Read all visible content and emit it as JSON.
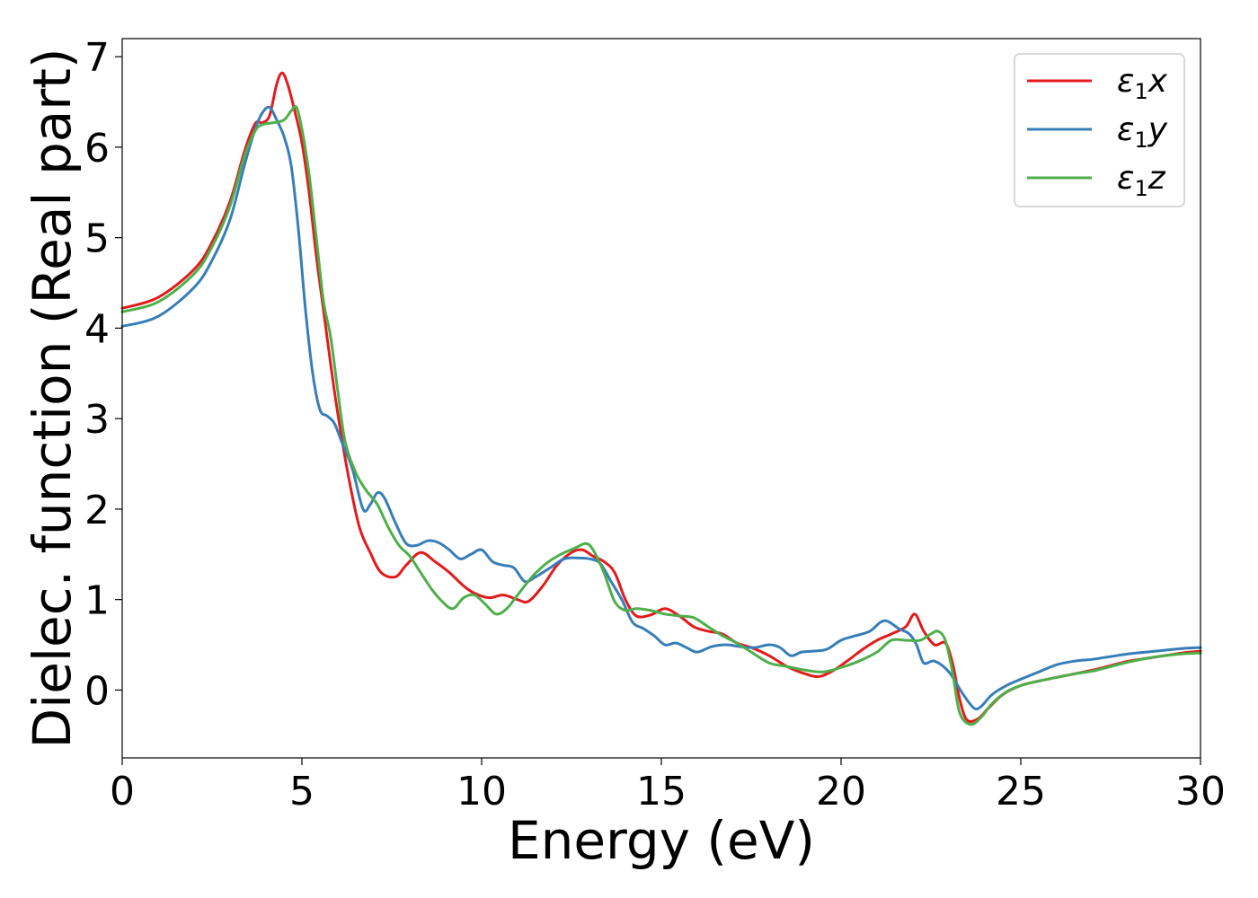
{
  "chart_data": {
    "type": "line",
    "title": "",
    "xlabel": "Energy (eV)",
    "ylabel": "Dielec. function (Real part)",
    "xlim": [
      0,
      30
    ],
    "ylim": [
      -0.75,
      7.2
    ],
    "xticks": [
      0,
      5,
      10,
      15,
      20,
      25,
      30
    ],
    "xtick_labels": [
      "0",
      "5",
      "10",
      "15",
      "20",
      "25",
      "30"
    ],
    "yticks": [
      0,
      1,
      2,
      3,
      4,
      5,
      6,
      7
    ],
    "ytick_labels": [
      "0",
      "1",
      "2",
      "3",
      "4",
      "5",
      "6",
      "7"
    ],
    "grid": false,
    "legend_position": "top-right",
    "series": [
      {
        "name": "ε1x",
        "label_main": "ε",
        "label_sub": "1",
        "label_tail": "x",
        "color": "#e41a1c",
        "x": [
          0,
          1,
          2,
          2.5,
          3,
          3.4,
          3.7,
          3.9,
          4.1,
          4.3,
          4.45,
          4.6,
          4.8,
          5.0,
          5.2,
          5.4,
          5.6,
          5.8,
          6.0,
          6.3,
          6.6,
          6.9,
          7.2,
          7.6,
          7.9,
          8.3,
          8.7,
          9.1,
          9.5,
          9.8,
          10.2,
          10.6,
          11.0,
          11.3,
          11.7,
          12.1,
          12.5,
          12.8,
          13.1,
          13.4,
          13.7,
          14.0,
          14.3,
          14.7,
          15.1,
          15.5,
          15.9,
          16.3,
          16.7,
          17.1,
          17.5,
          18.0,
          18.5,
          19.0,
          19.4,
          19.8,
          20.2,
          20.6,
          21.0,
          21.4,
          21.8,
          22.05,
          22.3,
          22.6,
          22.9,
          23.1,
          23.3,
          23.5,
          23.8,
          24.1,
          24.5,
          25.0,
          25.5,
          26.0,
          26.5,
          27.0,
          27.5,
          28.0,
          28.5,
          29.0,
          29.5,
          30.0
        ],
        "y": [
          4.22,
          4.34,
          4.65,
          4.95,
          5.4,
          5.95,
          6.26,
          6.27,
          6.35,
          6.7,
          6.82,
          6.7,
          6.4,
          6.05,
          5.5,
          4.8,
          4.2,
          3.6,
          3.05,
          2.35,
          1.8,
          1.52,
          1.3,
          1.25,
          1.38,
          1.52,
          1.42,
          1.3,
          1.15,
          1.07,
          1.02,
          1.05,
          1.0,
          0.98,
          1.15,
          1.38,
          1.52,
          1.55,
          1.48,
          1.42,
          1.3,
          1.0,
          0.82,
          0.83,
          0.9,
          0.82,
          0.7,
          0.65,
          0.62,
          0.52,
          0.47,
          0.38,
          0.26,
          0.18,
          0.15,
          0.22,
          0.33,
          0.45,
          0.55,
          0.62,
          0.7,
          0.84,
          0.65,
          0.5,
          0.52,
          0.3,
          -0.1,
          -0.33,
          -0.32,
          -0.2,
          -0.05,
          0.05,
          0.1,
          0.14,
          0.18,
          0.22,
          0.27,
          0.32,
          0.35,
          0.38,
          0.41,
          0.43
        ]
      },
      {
        "name": "ε1y",
        "label_main": "ε",
        "label_sub": "1",
        "label_tail": "y",
        "color": "#377eb8",
        "x": [
          0,
          1,
          2,
          2.5,
          3,
          3.4,
          3.7,
          3.9,
          4.1,
          4.3,
          4.5,
          4.7,
          4.9,
          5.1,
          5.3,
          5.5,
          5.7,
          5.9,
          6.1,
          6.4,
          6.7,
          6.9,
          7.1,
          7.3,
          7.6,
          7.9,
          8.2,
          8.5,
          8.8,
          9.1,
          9.4,
          9.7,
          10.0,
          10.3,
          10.6,
          10.9,
          11.2,
          11.5,
          11.9,
          12.3,
          12.7,
          13.0,
          13.3,
          13.6,
          13.9,
          14.2,
          14.5,
          14.8,
          15.1,
          15.4,
          15.7,
          16.0,
          16.4,
          16.8,
          17.2,
          17.6,
          18.0,
          18.3,
          18.6,
          18.9,
          19.2,
          19.6,
          20.0,
          20.4,
          20.8,
          21.1,
          21.3,
          21.6,
          21.9,
          22.1,
          22.3,
          22.6,
          23.0,
          23.4,
          23.7,
          23.9,
          24.2,
          24.6,
          25.0,
          25.5,
          26.0,
          26.5,
          27.0,
          27.5,
          28.0,
          28.5,
          29.0,
          29.5,
          30.0
        ],
        "y": [
          4.02,
          4.13,
          4.45,
          4.75,
          5.2,
          5.8,
          6.2,
          6.38,
          6.44,
          6.3,
          6.12,
          5.8,
          5.1,
          4.2,
          3.5,
          3.1,
          3.03,
          2.95,
          2.75,
          2.45,
          2.0,
          2.05,
          2.18,
          2.12,
          1.85,
          1.62,
          1.6,
          1.65,
          1.63,
          1.55,
          1.45,
          1.5,
          1.55,
          1.42,
          1.38,
          1.35,
          1.2,
          1.25,
          1.35,
          1.45,
          1.46,
          1.45,
          1.4,
          1.2,
          1.0,
          0.75,
          0.68,
          0.6,
          0.5,
          0.52,
          0.47,
          0.42,
          0.48,
          0.5,
          0.48,
          0.47,
          0.5,
          0.47,
          0.38,
          0.42,
          0.43,
          0.45,
          0.55,
          0.6,
          0.65,
          0.75,
          0.76,
          0.68,
          0.62,
          0.5,
          0.3,
          0.32,
          0.2,
          -0.05,
          -0.2,
          -0.18,
          -0.05,
          0.05,
          0.12,
          0.2,
          0.28,
          0.32,
          0.34,
          0.37,
          0.4,
          0.42,
          0.44,
          0.46,
          0.47
        ]
      },
      {
        "name": "ε1z",
        "label_main": "ε",
        "label_sub": "1",
        "label_tail": "z",
        "color": "#4daf4a",
        "x": [
          0,
          1,
          2,
          2.5,
          3,
          3.4,
          3.7,
          3.9,
          4.2,
          4.5,
          4.7,
          4.85,
          5.0,
          5.2,
          5.4,
          5.6,
          5.8,
          6.0,
          6.2,
          6.5,
          6.8,
          7.1,
          7.4,
          7.7,
          8.0,
          8.3,
          8.6,
          8.9,
          9.2,
          9.5,
          9.8,
          10.1,
          10.4,
          10.7,
          11.0,
          11.4,
          11.8,
          12.2,
          12.6,
          12.9,
          13.1,
          13.4,
          13.7,
          14.0,
          14.3,
          14.7,
          15.1,
          15.5,
          15.9,
          16.3,
          16.7,
          17.1,
          17.5,
          18.0,
          18.5,
          19.0,
          19.5,
          20.0,
          20.5,
          21.0,
          21.4,
          21.8,
          22.2,
          22.5,
          22.7,
          22.9,
          23.1,
          23.3,
          23.6,
          23.9,
          24.2,
          24.6,
          25.0,
          25.5,
          26.0,
          26.5,
          27.0,
          27.5,
          28.0,
          28.5,
          29.0,
          29.5,
          30.0
        ],
        "y": [
          4.18,
          4.29,
          4.6,
          4.9,
          5.35,
          5.9,
          6.18,
          6.25,
          6.27,
          6.3,
          6.4,
          6.44,
          6.2,
          5.7,
          5.0,
          4.3,
          3.9,
          3.3,
          2.75,
          2.4,
          2.2,
          2.05,
          1.8,
          1.6,
          1.48,
          1.3,
          1.12,
          0.98,
          0.9,
          1.02,
          1.05,
          0.95,
          0.84,
          0.9,
          1.05,
          1.25,
          1.4,
          1.5,
          1.57,
          1.62,
          1.55,
          1.3,
          0.98,
          0.88,
          0.9,
          0.88,
          0.84,
          0.82,
          0.8,
          0.7,
          0.6,
          0.52,
          0.42,
          0.3,
          0.26,
          0.22,
          0.2,
          0.25,
          0.32,
          0.42,
          0.55,
          0.55,
          0.55,
          0.62,
          0.65,
          0.55,
          0.2,
          -0.25,
          -0.38,
          -0.3,
          -0.15,
          -0.02,
          0.05,
          0.1,
          0.14,
          0.18,
          0.21,
          0.26,
          0.31,
          0.35,
          0.38,
          0.4,
          0.41
        ]
      }
    ]
  }
}
